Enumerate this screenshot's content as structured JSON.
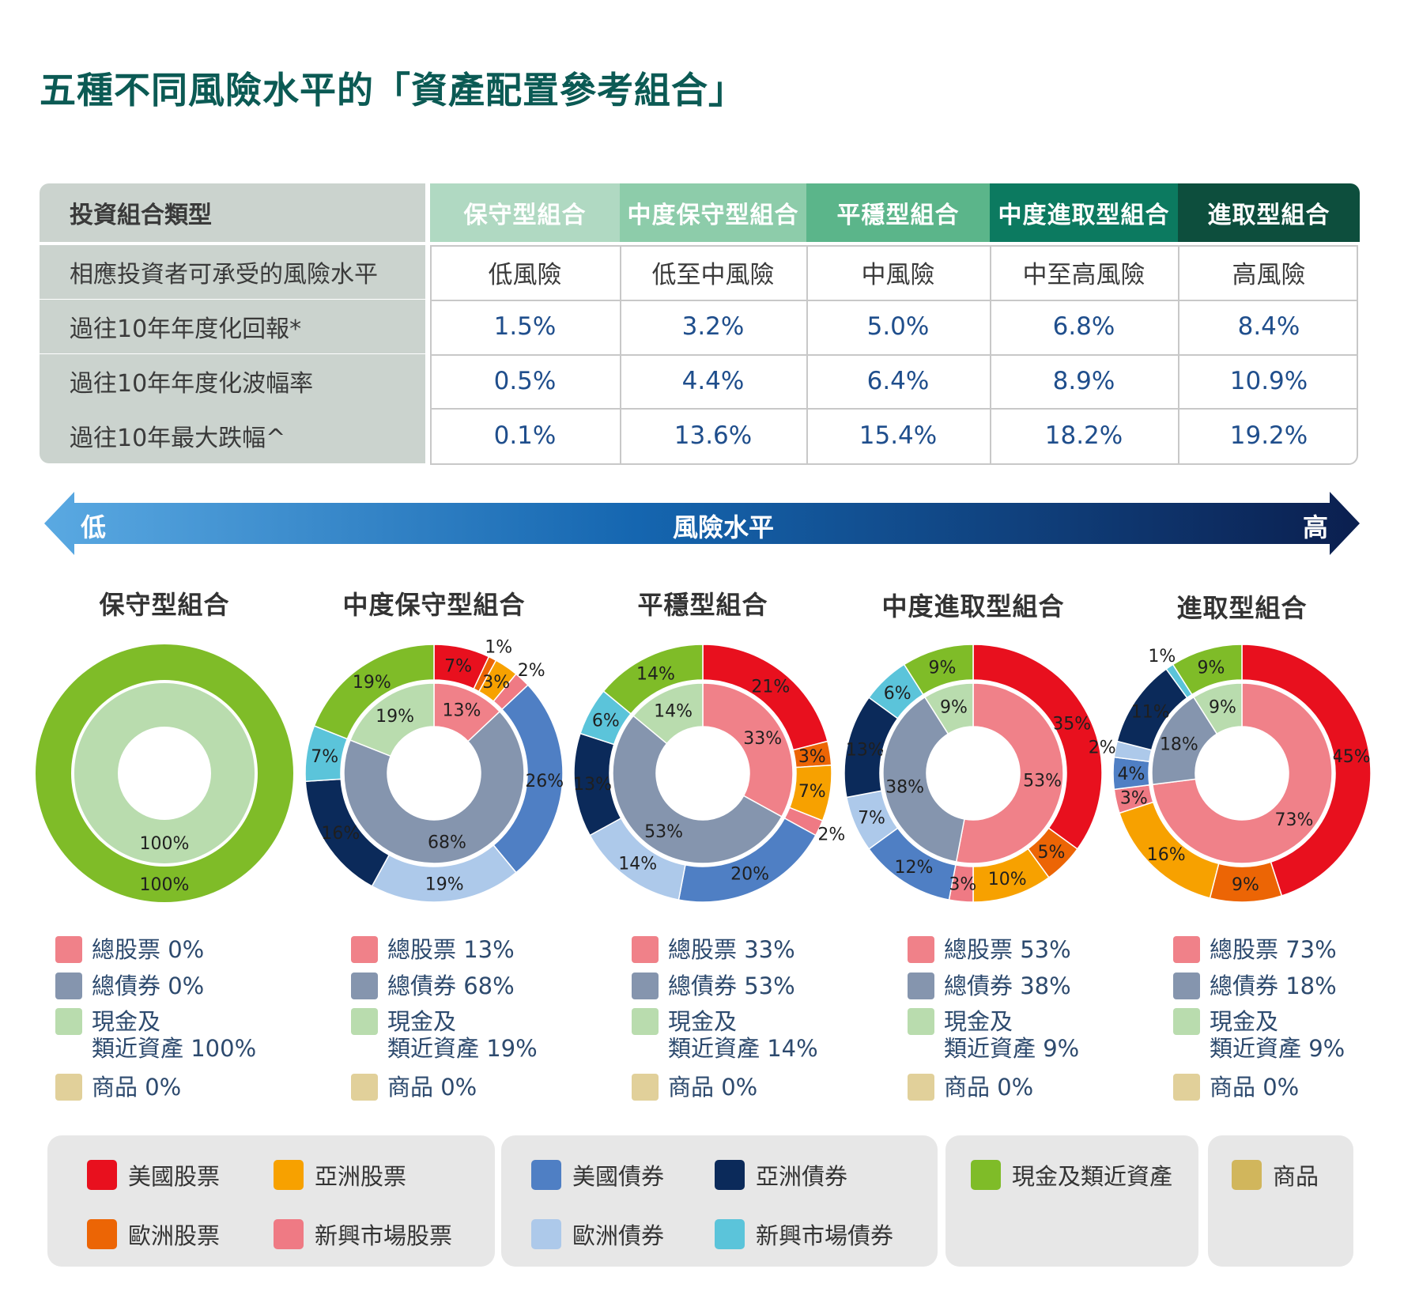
{
  "title": "五種不同風險水平的「資產配置參考組合」",
  "table": {
    "corner": "投資組合類型",
    "columns": [
      "保守型組合",
      "中度保守型組合",
      "平穩型組合",
      "中度進取型組合",
      "進取型組合"
    ],
    "column_colors": [
      "#b0d9c2",
      "#8dccaa",
      "#5bb58a",
      "#0c7a60",
      "#0d4e3d"
    ],
    "rows": [
      {
        "label": "相應投資者可承受的風險水平",
        "values": [
          "低風險",
          "低至中風險",
          "中風險",
          "中至高風險",
          "高風險"
        ]
      },
      {
        "label": "過往10年年度化回報*",
        "values": [
          "1.5%",
          "3.2%",
          "5.0%",
          "6.8%",
          "8.4%"
        ]
      },
      {
        "label": "過往10年年度化波幅率",
        "values": [
          "0.5%",
          "4.4%",
          "6.4%",
          "8.9%",
          "10.9%"
        ]
      },
      {
        "label": "過往10年最大跌幅^",
        "values": [
          "0.1%",
          "13.6%",
          "15.4%",
          "18.2%",
          "19.2%"
        ]
      }
    ]
  },
  "arrow": {
    "low": "低",
    "mid": "風險水平",
    "high": "高"
  },
  "legend_categories": [
    {
      "name": "美國股票",
      "color": "#e8101e"
    },
    {
      "name": "亞洲股票",
      "color": "#f7a100"
    },
    {
      "name": "歐洲股票",
      "color": "#ec6505"
    },
    {
      "name": "新興市場股票",
      "color": "#ef7a84"
    },
    {
      "name": "美國債券",
      "color": "#4f7fc4"
    },
    {
      "name": "亞洲債券",
      "color": "#0b2a5a"
    },
    {
      "name": "歐洲債券",
      "color": "#adc9ea"
    },
    {
      "name": "新興市場債券",
      "color": "#5bc4da"
    },
    {
      "name": "現金及類近資產",
      "color": "#7fbc28"
    },
    {
      "name": "商品",
      "color": "#d1b65c"
    }
  ],
  "inner_colors": {
    "stocks": "#f08189",
    "bonds": "#8595ae",
    "cash": "#b9dcae",
    "commodities": "#e1d09a"
  },
  "chart_data": [
    {
      "type": "pie",
      "title": "保守型組合",
      "outer": [
        {
          "name": "現金及類近資產",
          "value": 100,
          "label": "100%"
        }
      ],
      "inner": [
        {
          "name": "現金及類近資產",
          "value": 100,
          "label": "100%"
        }
      ],
      "legend": [
        {
          "key": "stocks",
          "label": "總股票 0%"
        },
        {
          "key": "bonds",
          "label": "總債券 0%"
        },
        {
          "key": "cash",
          "label": "現金及",
          "label2": "類近資產 100%"
        },
        {
          "key": "commodities",
          "label": "商品 0%"
        }
      ]
    },
    {
      "type": "pie",
      "title": "中度保守型組合",
      "outer": [
        {
          "name": "美國股票",
          "value": 7,
          "label": "7%"
        },
        {
          "name": "歐洲股票",
          "value": 1,
          "label": "1%"
        },
        {
          "name": "亞洲股票",
          "value": 3,
          "label": "3%"
        },
        {
          "name": "新興市場股票",
          "value": 2,
          "label": "2%"
        },
        {
          "name": "美國債券",
          "value": 26,
          "label": "26%"
        },
        {
          "name": "歐洲債券",
          "value": 19,
          "label": "19%"
        },
        {
          "name": "亞洲債券",
          "value": 16,
          "label": "16%"
        },
        {
          "name": "新興市場債券",
          "value": 7,
          "label": "7%"
        },
        {
          "name": "現金及類近資產",
          "value": 19,
          "label": "19%"
        }
      ],
      "inner": [
        {
          "name": "總股票",
          "value": 13,
          "label": "13%"
        },
        {
          "name": "總債券",
          "value": 68,
          "label": "68%"
        },
        {
          "name": "現金及類近資產",
          "value": 19,
          "label": "19%"
        }
      ],
      "legend": [
        {
          "key": "stocks",
          "label": "總股票 13%"
        },
        {
          "key": "bonds",
          "label": "總債券 68%"
        },
        {
          "key": "cash",
          "label": "現金及",
          "label2": "類近資產 19%"
        },
        {
          "key": "commodities",
          "label": "商品 0%"
        }
      ]
    },
    {
      "type": "pie",
      "title": "平穩型組合",
      "outer": [
        {
          "name": "美國股票",
          "value": 21,
          "label": "21%"
        },
        {
          "name": "歐洲股票",
          "value": 3,
          "label": "3%"
        },
        {
          "name": "亞洲股票",
          "value": 7,
          "label": "7%"
        },
        {
          "name": "新興市場股票",
          "value": 2,
          "label": "2%"
        },
        {
          "name": "美國債券",
          "value": 20,
          "label": "20%"
        },
        {
          "name": "歐洲債券",
          "value": 14,
          "label": "14%"
        },
        {
          "name": "亞洲債券",
          "value": 13,
          "label": "13%"
        },
        {
          "name": "新興市場債券",
          "value": 6,
          "label": "6%"
        },
        {
          "name": "現金及類近資產",
          "value": 14,
          "label": "14%"
        }
      ],
      "inner": [
        {
          "name": "總股票",
          "value": 33,
          "label": "33%"
        },
        {
          "name": "總債券",
          "value": 53,
          "label": "53%"
        },
        {
          "name": "現金及類近資產",
          "value": 14,
          "label": "14%"
        }
      ],
      "legend": [
        {
          "key": "stocks",
          "label": "總股票 33%"
        },
        {
          "key": "bonds",
          "label": "總債券 53%"
        },
        {
          "key": "cash",
          "label": "現金及",
          "label2": "類近資產 14%"
        },
        {
          "key": "commodities",
          "label": "商品 0%"
        }
      ]
    },
    {
      "type": "pie",
      "title": "中度進取型組合",
      "outer": [
        {
          "name": "美國股票",
          "value": 35,
          "label": "35%"
        },
        {
          "name": "歐洲股票",
          "value": 5,
          "label": "5%"
        },
        {
          "name": "亞洲股票",
          "value": 10,
          "label": "10%"
        },
        {
          "name": "新興市場股票",
          "value": 3,
          "label": "3%"
        },
        {
          "name": "美國債券",
          "value": 12,
          "label": "12%"
        },
        {
          "name": "歐洲債券",
          "value": 7,
          "label": "7%"
        },
        {
          "name": "亞洲債券",
          "value": 13,
          "label": "13%"
        },
        {
          "name": "新興市場債券",
          "value": 6,
          "label": "6%"
        },
        {
          "name": "現金及類近資產",
          "value": 9,
          "label": "9%"
        }
      ],
      "inner": [
        {
          "name": "總股票",
          "value": 53,
          "label": "53%"
        },
        {
          "name": "總債券",
          "value": 38,
          "label": "38%"
        },
        {
          "name": "現金及類近資產",
          "value": 9,
          "label": "9%"
        }
      ],
      "legend": [
        {
          "key": "stocks",
          "label": "總股票 53%"
        },
        {
          "key": "bonds",
          "label": "總債券 38%"
        },
        {
          "key": "cash",
          "label": "現金及",
          "label2": "類近資產 9%"
        },
        {
          "key": "commodities",
          "label": "商品 0%"
        }
      ]
    },
    {
      "type": "pie",
      "title": "進取型組合",
      "outer": [
        {
          "name": "美國股票",
          "value": 45,
          "label": "45%"
        },
        {
          "name": "歐洲股票",
          "value": 9,
          "label": "9%"
        },
        {
          "name": "亞洲股票",
          "value": 16,
          "label": "16%"
        },
        {
          "name": "新興市場股票",
          "value": 3,
          "label": "3%"
        },
        {
          "name": "美國債券",
          "value": 4,
          "label": "4%"
        },
        {
          "name": "歐洲債券",
          "value": 2,
          "label": "2%"
        },
        {
          "name": "亞洲債券",
          "value": 11,
          "label": "11%"
        },
        {
          "name": "新興市場債券",
          "value": 1,
          "label": "1%"
        },
        {
          "name": "現金及類近資產",
          "value": 9,
          "label": "9%"
        }
      ],
      "inner": [
        {
          "name": "總股票",
          "value": 73,
          "label": "73%"
        },
        {
          "name": "總債券",
          "value": 18,
          "label": "18%"
        },
        {
          "name": "現金及類近資產",
          "value": 9,
          "label": "9%"
        }
      ],
      "legend": [
        {
          "key": "stocks",
          "label": "總股票 73%"
        },
        {
          "key": "bonds",
          "label": "總債券 18%"
        },
        {
          "key": "cash",
          "label": "現金及",
          "label2": "類近資產 9%"
        },
        {
          "key": "commodities",
          "label": "商品 0%"
        }
      ]
    }
  ]
}
